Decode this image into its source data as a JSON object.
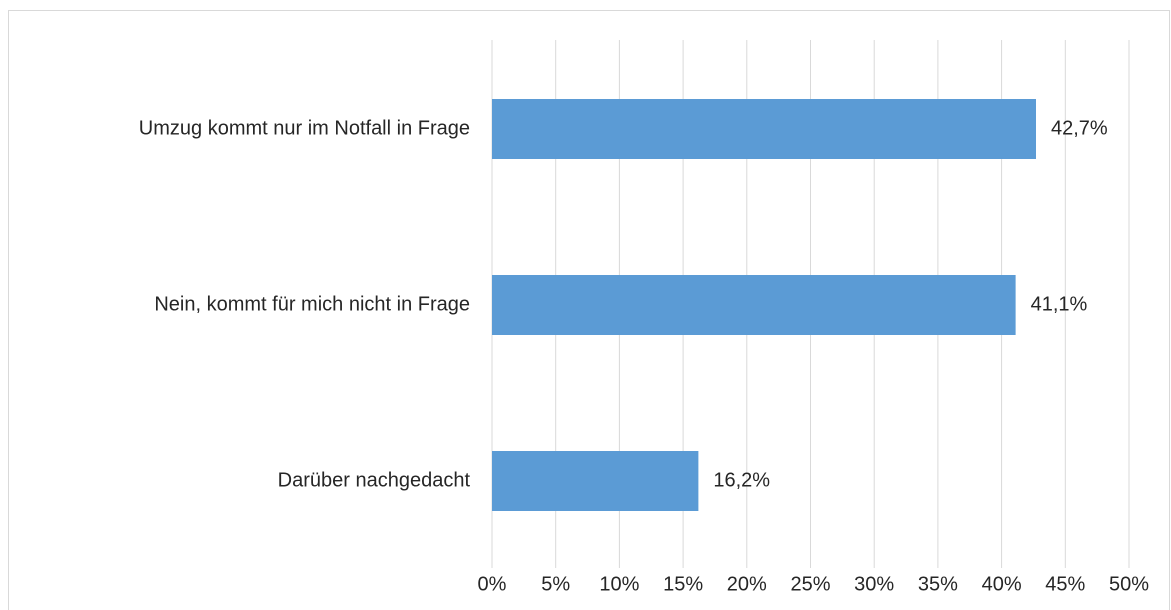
{
  "chart_data": {
    "type": "bar",
    "orientation": "horizontal",
    "categories": [
      "Umzug kommt nur im Notfall in Frage",
      "Nein, kommt für mich nicht in Frage",
      "Darüber nachgedacht"
    ],
    "values": [
      42.7,
      41.1,
      16.2
    ],
    "value_labels": [
      "42,7%",
      "41,1%",
      "16,2%"
    ],
    "color": "#5b9bd5",
    "xlim": [
      0,
      50
    ],
    "xticks": [
      {
        "value": 0,
        "label": "0%"
      },
      {
        "value": 5,
        "label": "5%"
      },
      {
        "value": 10,
        "label": "10%"
      },
      {
        "value": 15,
        "label": "15%"
      },
      {
        "value": 20,
        "label": "20%"
      },
      {
        "value": 25,
        "label": "25%"
      },
      {
        "value": 30,
        "label": "30%"
      },
      {
        "value": 35,
        "label": "35%"
      },
      {
        "value": 40,
        "label": "40%"
      },
      {
        "value": 45,
        "label": "45%"
      },
      {
        "value": 50,
        "label": "50%"
      }
    ],
    "grid": true
  }
}
